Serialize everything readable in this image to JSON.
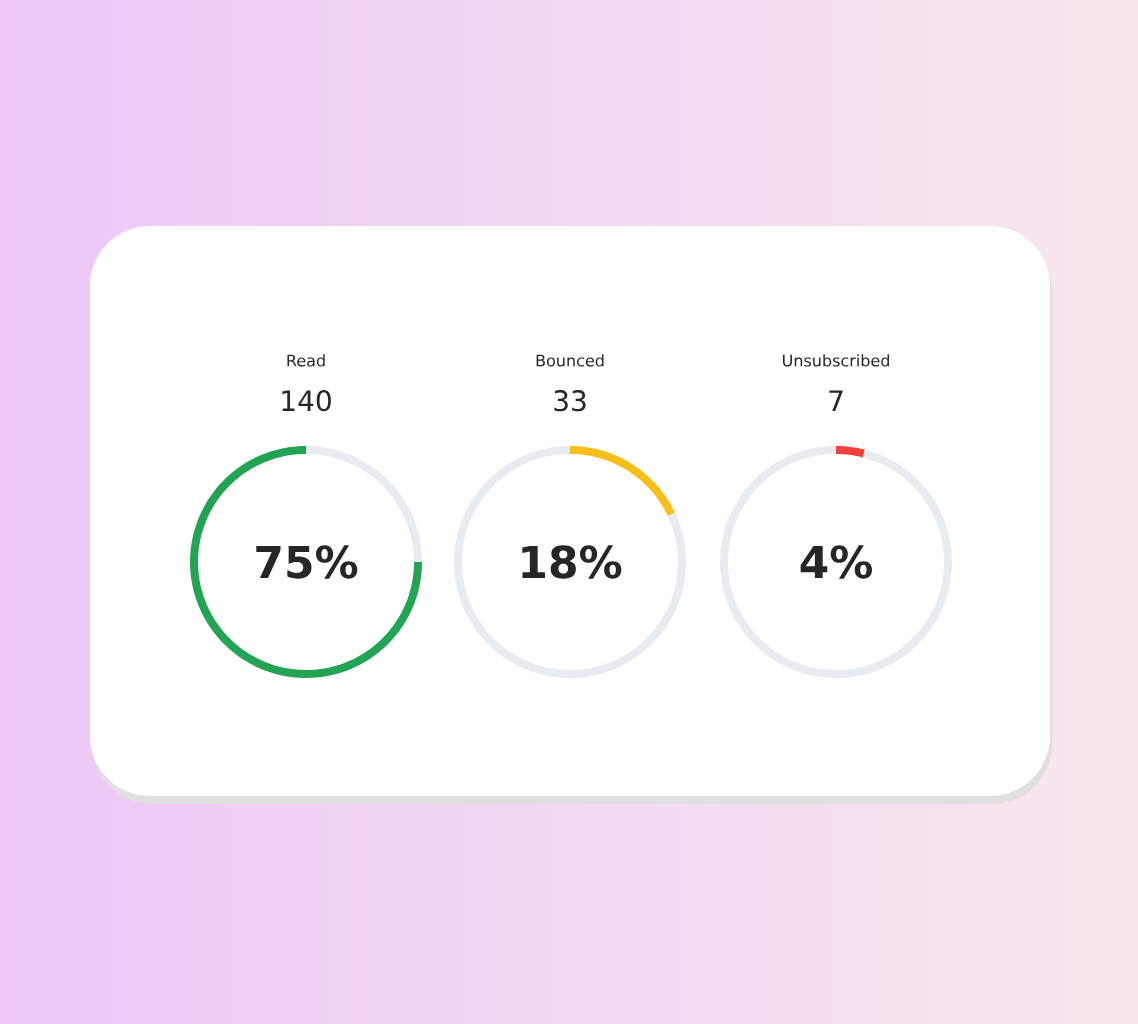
{
  "chart_data": [
    {
      "type": "donut",
      "title": "Read",
      "subtitle": "140",
      "categories": [
        null,
        null
      ],
      "values": [
        25,
        75
      ],
      "colors": [
        "#e8ebf0",
        "#23a455"
      ],
      "annotations": [
        "75%"
      ]
    },
    {
      "type": "donut",
      "title": "Bounced",
      "subtitle": "33",
      "categories": [
        null,
        null
      ],
      "values": [
        18,
        82
      ],
      "colors": [
        "#f8be1a",
        "#e8ebf0"
      ],
      "annotations": [
        "18%"
      ]
    },
    {
      "type": "donut",
      "title": "Unsubscribed",
      "subtitle": "7",
      "categories": [
        null,
        null
      ],
      "values": [
        4,
        96
      ],
      "colors": [
        "#f2403a",
        "#e8ebf0"
      ],
      "annotations": [
        "4%"
      ]
    }
  ]
}
